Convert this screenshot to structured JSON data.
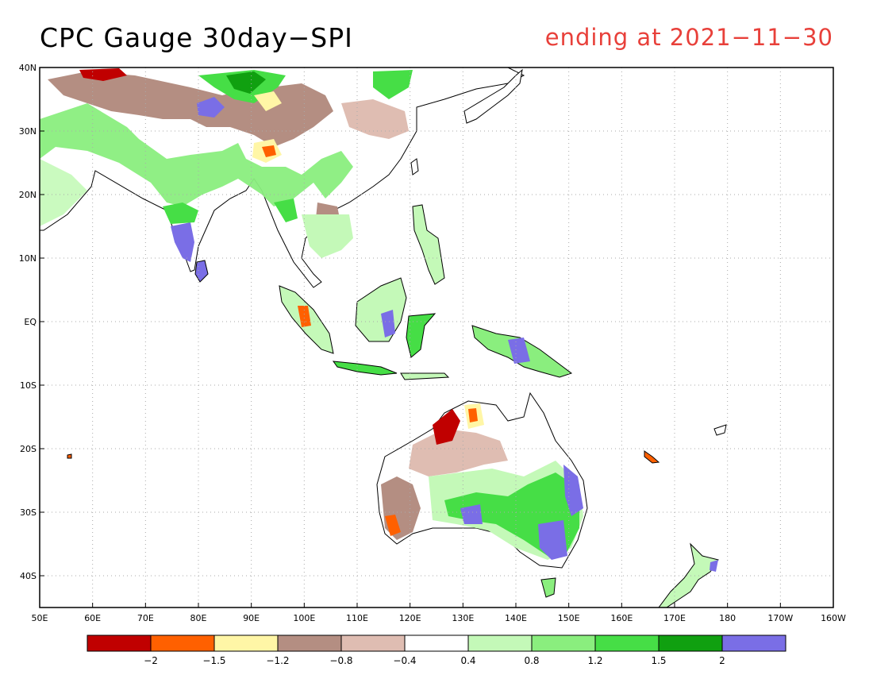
{
  "title": "CPC Gauge 30day−SPI",
  "subtitle": "ending at 2021−11−30",
  "colors": {
    "title": "#000000",
    "subtitle": "#e8403a",
    "ocean": "#ffffff",
    "coast": "#000000"
  },
  "map": {
    "lon_range": [
      50,
      200
    ],
    "lat_range": [
      -45,
      40
    ],
    "x_ticks": [
      {
        "lon": 50,
        "label": "50E"
      },
      {
        "lon": 60,
        "label": "60E"
      },
      {
        "lon": 70,
        "label": "70E"
      },
      {
        "lon": 80,
        "label": "80E"
      },
      {
        "lon": 90,
        "label": "90E"
      },
      {
        "lon": 100,
        "label": "100E"
      },
      {
        "lon": 110,
        "label": "110E"
      },
      {
        "lon": 120,
        "label": "120E"
      },
      {
        "lon": 130,
        "label": "130E"
      },
      {
        "lon": 140,
        "label": "140E"
      },
      {
        "lon": 150,
        "label": "150E"
      },
      {
        "lon": 160,
        "label": "160E"
      },
      {
        "lon": 170,
        "label": "170E"
      },
      {
        "lon": 180,
        "label": "180"
      },
      {
        "lon": 190,
        "label": "170W"
      },
      {
        "lon": 200,
        "label": "160W"
      }
    ],
    "y_ticks": [
      {
        "lat": 40,
        "label": "40N"
      },
      {
        "lat": 30,
        "label": "30N"
      },
      {
        "lat": 20,
        "label": "20N"
      },
      {
        "lat": 10,
        "label": "10N"
      },
      {
        "lat": 0,
        "label": "EQ"
      },
      {
        "lat": -10,
        "label": "10S"
      },
      {
        "lat": -20,
        "label": "20S"
      },
      {
        "lat": -30,
        "label": "30S"
      },
      {
        "lat": -40,
        "label": "40S"
      }
    ]
  },
  "legend": {
    "colors": [
      "#c00000",
      "#ff6000",
      "#fff6a6",
      "#b48e82",
      "#dfbdb2",
      "#ffffff",
      "#c4f9b8",
      "#8aee7e",
      "#46de46",
      "#10a010",
      "#7a6ee6"
    ],
    "labels": [
      "−2",
      "−1.5",
      "−1.2",
      "−0.8",
      "−0.4",
      "0.4",
      "0.8",
      "1.2",
      "1.5",
      "2"
    ]
  }
}
